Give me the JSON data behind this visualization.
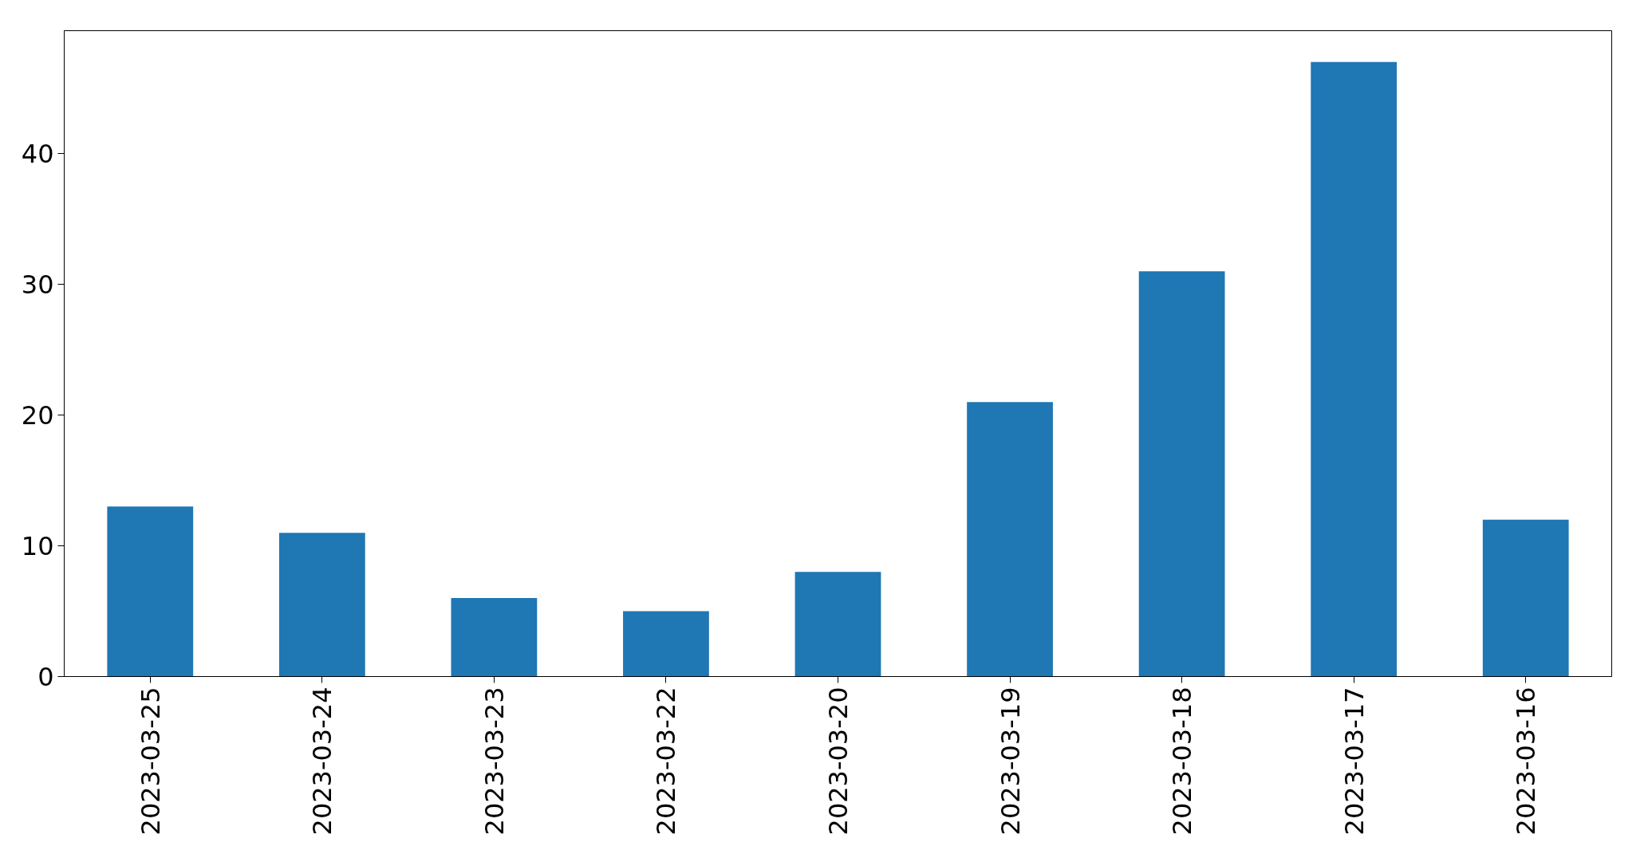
{
  "chart_data": {
    "type": "bar",
    "categories": [
      "2023-03-25",
      "2023-03-24",
      "2023-03-23",
      "2023-03-22",
      "2023-03-20",
      "2023-03-19",
      "2023-03-18",
      "2023-03-17",
      "2023-03-16"
    ],
    "values": [
      13,
      11,
      6,
      5,
      8,
      21,
      31,
      47,
      12
    ],
    "color": "#1f77b4",
    "ylim": [
      0,
      49.4
    ],
    "yticks": [
      0,
      10,
      20,
      30,
      40
    ],
    "grid": false
  }
}
